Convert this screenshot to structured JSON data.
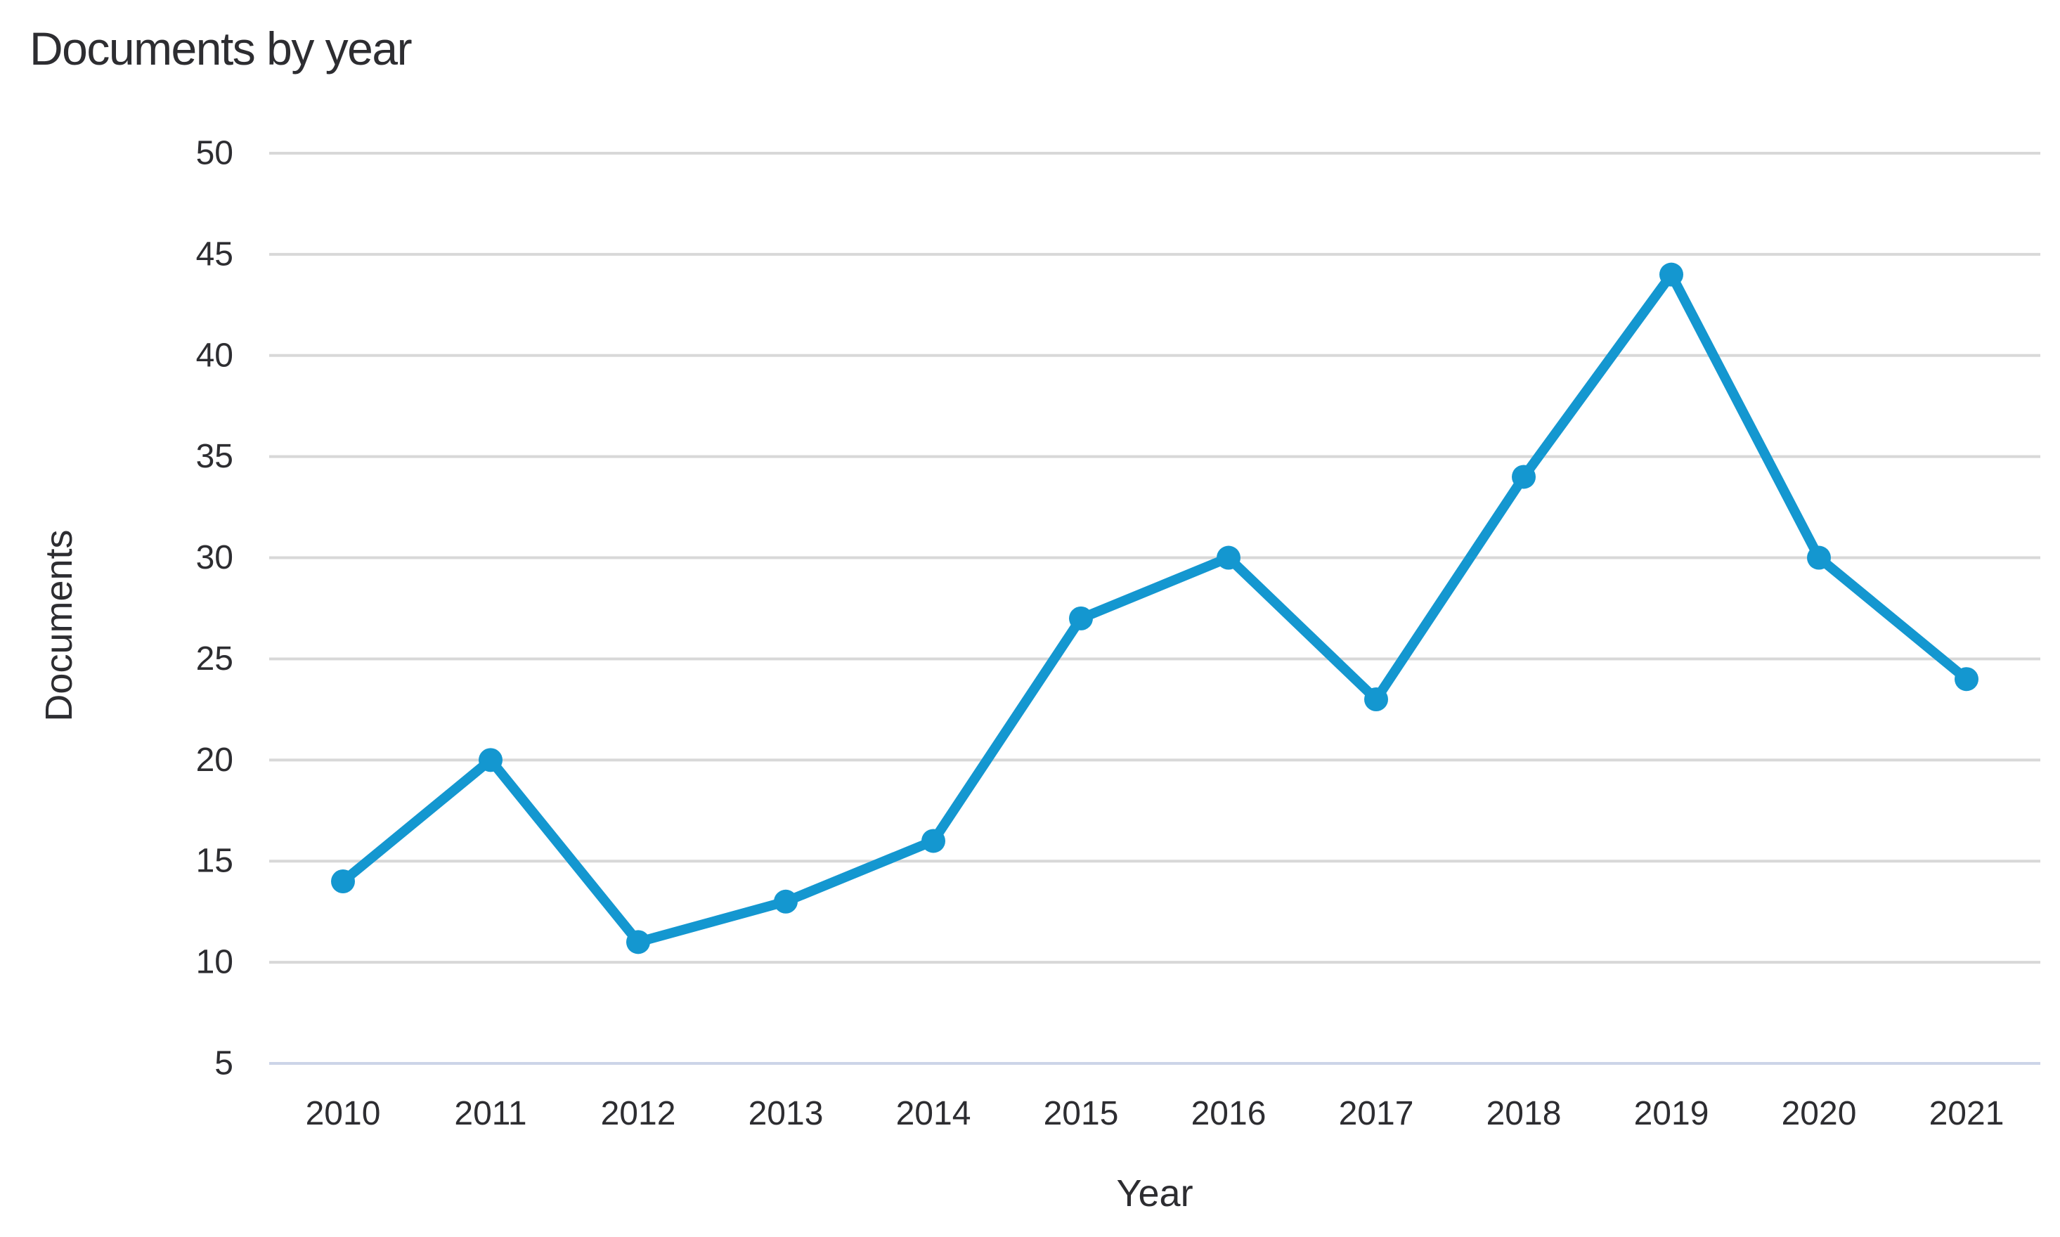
{
  "chart": {
    "title": "Documents by year"
  },
  "chart_data": {
    "type": "line",
    "title": "Documents by year",
    "xlabel": "Year",
    "ylabel": "Documents",
    "categories": [
      "2010",
      "2011",
      "2012",
      "2013",
      "2014",
      "2015",
      "2016",
      "2017",
      "2018",
      "2019",
      "2020",
      "2021"
    ],
    "series": [
      {
        "name": "Documents",
        "values": [
          14,
          20,
          11,
          13,
          16,
          27,
          30,
          23,
          34,
          44,
          30,
          24
        ]
      }
    ],
    "ylim": [
      5,
      50
    ],
    "yticks": [
      5,
      10,
      15,
      20,
      25,
      30,
      35,
      40,
      45,
      50
    ],
    "grid": "horizontal-only",
    "legend_position": "none",
    "marker_style": "filled-circle",
    "colors": {
      "line": "#1497d0",
      "grid": "#d8d8d8",
      "baseline": "#ccd4e8",
      "text": "#2d2d31"
    }
  }
}
